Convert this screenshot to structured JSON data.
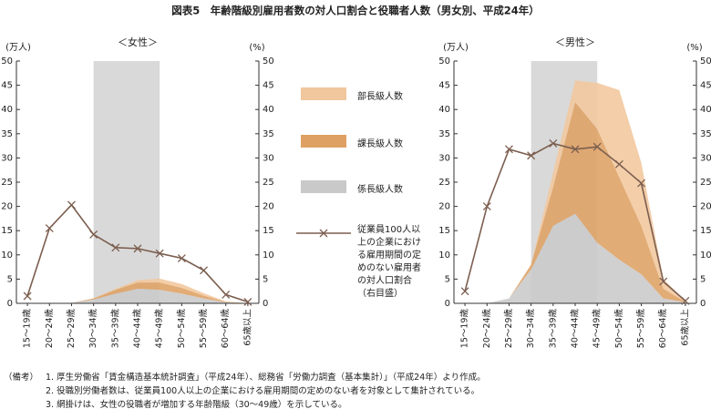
{
  "title": "図表5　年齢階級別雇用者数の対人口割合と役職者人数（男女別、平成24年）",
  "chart_data": [
    {
      "type": "stacked-area-line",
      "title": "＜女性＞",
      "y_label": "(万人)",
      "y2_label": "(%)",
      "categories": [
        "15～19歳",
        "20～24歳",
        "25～29歳",
        "30～34歳",
        "35～39歳",
        "40～44歳",
        "45～49歳",
        "50～54歳",
        "55～59歳",
        "60～64歳",
        "65歳以上"
      ],
      "shaded_categories": [
        "30～34歳",
        "45～49歳"
      ],
      "shade_color": "#d9d9d9",
      "ylim": [
        0,
        50
      ],
      "yticks": [
        0,
        5,
        10,
        15,
        20,
        25,
        30,
        35,
        40,
        45,
        50
      ],
      "y2lim": [
        0,
        50
      ],
      "y2ticks": [
        0,
        5,
        10,
        15,
        20,
        25,
        30,
        35,
        40,
        45,
        50
      ],
      "series": [
        {
          "name": "部長級人数",
          "type": "area",
          "color": "#f1c79d",
          "values": [
            0,
            0,
            0,
            0.05,
            0.2,
            0.5,
            0.8,
            0.8,
            0.5,
            0.1,
            0
          ]
        },
        {
          "name": "課長級人数",
          "type": "area",
          "color": "#dea163",
          "values": [
            0,
            0,
            0,
            0.2,
            0.8,
            1.3,
            1.5,
            1.2,
            0.6,
            0.1,
            0
          ]
        },
        {
          "name": "係長級人数",
          "type": "area",
          "color": "#c9c9c9",
          "values": [
            0,
            0,
            0.1,
            0.8,
            2.0,
            3.0,
            2.8,
            2.0,
            1.0,
            0.2,
            0
          ]
        },
        {
          "name": "従業員100人以上の企業における雇用期間の定めのない雇用者の対人口割合（右目盛）",
          "type": "line",
          "axis": "y2",
          "color": "#7b5e4f",
          "values": [
            1.5,
            15.5,
            20.3,
            14.2,
            11.5,
            11.3,
            10.3,
            9.3,
            6.8,
            1.8,
            0.3
          ]
        }
      ]
    },
    {
      "type": "stacked-area-line",
      "title": "＜男性＞",
      "y_label": "(万人)",
      "y2_label": "(%)",
      "categories": [
        "15～19歳",
        "20～24歳",
        "25～29歳",
        "30～34歳",
        "35～39歳",
        "40～44歳",
        "45～49歳",
        "50～54歳",
        "55～59歳",
        "60～64歳",
        "65歳以上"
      ],
      "shaded_categories": [
        "30～34歳",
        "45～49歳"
      ],
      "shade_color": "#d9d9d9",
      "ylim": [
        0,
        50
      ],
      "yticks": [
        0,
        5,
        10,
        15,
        20,
        25,
        30,
        35,
        40,
        45,
        50
      ],
      "y2lim": [
        0,
        50
      ],
      "y2ticks": [
        0,
        5,
        10,
        15,
        20,
        25,
        30,
        35,
        40,
        45,
        50
      ],
      "series": [
        {
          "type": "area",
          "color": "#f1c79d",
          "values": [
            0,
            0,
            0,
            0,
            3,
            4.5,
            9.5,
            18,
            13,
            2,
            0.2
          ]
        },
        {
          "type": "area",
          "color": "#dea163",
          "values": [
            0,
            0,
            0,
            1,
            8,
            23,
            23.5,
            17,
            10,
            2,
            0.1
          ]
        },
        {
          "type": "area",
          "color": "#c9c9c9",
          "values": [
            0,
            0,
            1,
            7,
            16,
            18.5,
            12.5,
            9,
            6,
            1,
            0.2
          ]
        },
        {
          "type": "line",
          "axis": "y2",
          "color": "#7b5e4f",
          "values": [
            2.5,
            20,
            31.8,
            30.5,
            33,
            31.8,
            32.3,
            28.7,
            24.8,
            4.5,
            0.5
          ]
        }
      ]
    }
  ],
  "notes": {
    "label": "（備考）",
    "items": [
      "1.  厚生労働省「賃金構造基本統計調査」（平成24年）、総務省「労働力調査（基本集計）」（平成24年）より作成。",
      "2.  役職別労働者数は、従業員100人以上の企業における雇用期間の定めのない者を対象として集計されている。",
      "3.  網掛けは、女性の役職者が増加する年齢階級（30～49歳）を示している。"
    ]
  }
}
